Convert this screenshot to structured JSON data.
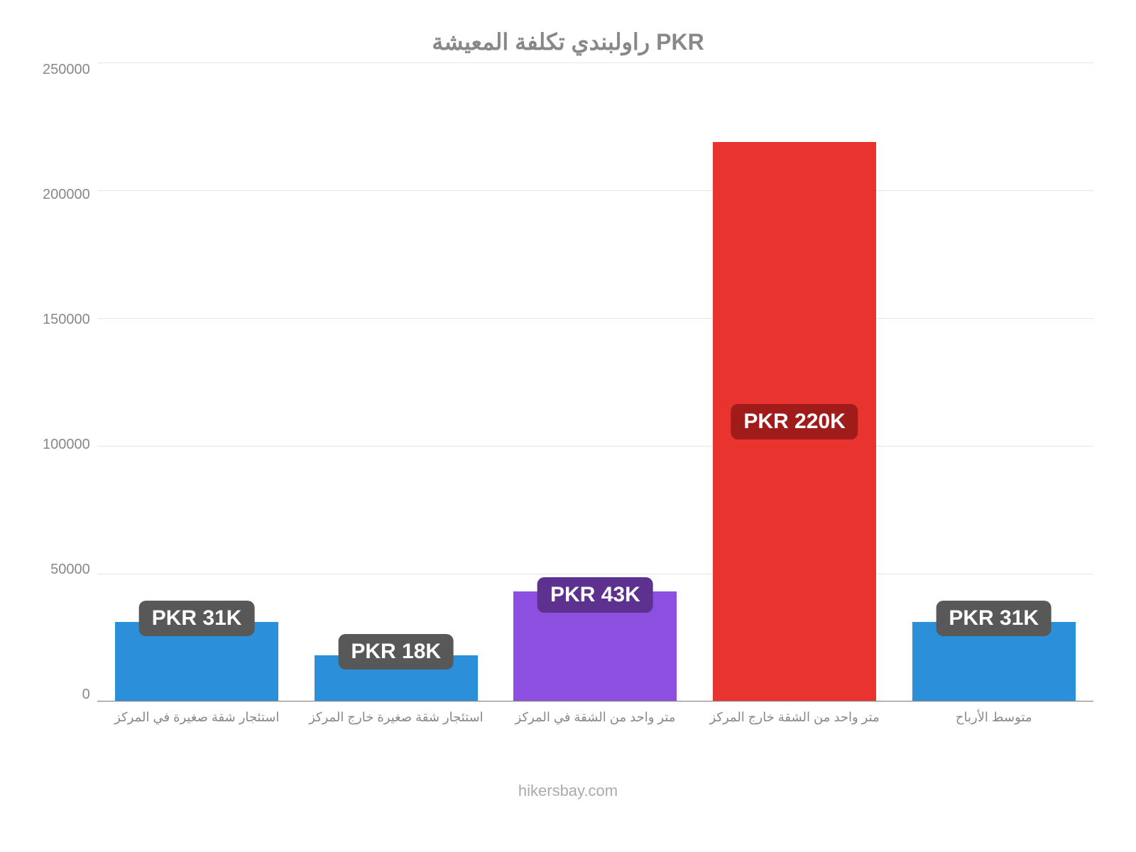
{
  "chart": {
    "type": "bar",
    "title": "راولبندي تكلفة المعيشة PKR",
    "title_color": "#888888",
    "title_fontsize": 32,
    "background_color": "#ffffff",
    "grid_color": "#e6e6e6",
    "axis_text_color": "#888888",
    "ylim": [
      0,
      250000
    ],
    "ytick_step": 50000,
    "yticks": [
      "0",
      "50000",
      "100000",
      "150000",
      "200000",
      "250000"
    ],
    "bars": [
      {
        "category": "استئجار شقة صغيرة في المركز",
        "value": 31000,
        "label": "PKR 31K",
        "color": "#2b90d9",
        "label_bg": "#585858",
        "label_mode": "above"
      },
      {
        "category": "استئجار شقة صغيرة خارج المركز",
        "value": 18000,
        "label": "PKR 18K",
        "color": "#2b90d9",
        "label_bg": "#585858",
        "label_mode": "above"
      },
      {
        "category": "متر واحد من الشقة في المركز",
        "value": 43000,
        "label": "PKR 43K",
        "color": "#8c4fe0",
        "label_bg": "#5d318f",
        "label_mode": "top-inside"
      },
      {
        "category": "متر واحد من الشقة خارج المركز",
        "value": 219000,
        "label": "PKR 220K",
        "color": "#e9332f",
        "label_bg": "#a01c1b",
        "label_mode": "center"
      },
      {
        "category": "متوسط الأرباح",
        "value": 31000,
        "label": "PKR 31K",
        "color": "#2b90d9",
        "label_bg": "#585858",
        "label_mode": "above"
      }
    ],
    "bar_width": 0.82,
    "label_fontsize": 30,
    "label_text_color": "#ffffff",
    "x_label_fontsize": 18,
    "y_label_fontsize": 20
  },
  "attribution": "hikersbay.com"
}
